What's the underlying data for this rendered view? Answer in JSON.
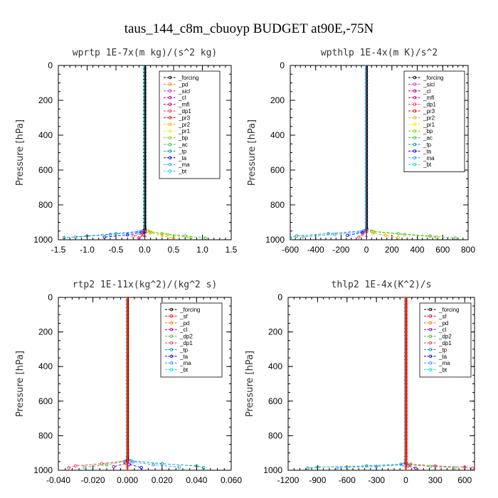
{
  "figure_title": "taus_144_c8m_cbuoyp  BUDGET at90E,-75N",
  "colors": {
    "_forcing": "#000000",
    "_sf": "#ff0000",
    "_pd": "#ff7f00",
    "_sicl": "#cc33cc",
    "_cl": "#990099",
    "_mfl": "#cc0066",
    "_dp1": "#ff3355",
    "_dp2": "#44bb44",
    "_pr3": "#ff0000",
    "_pr2": "#ffaa00",
    "_pr1": "#eeee00",
    "_bp": "#88cc00",
    "_ac": "#33cc33",
    "_tp": "#009999",
    "_ta": "#0000ff",
    "_ma": "#3399ff",
    "_bt": "#00dddd"
  },
  "chart_data": [
    {
      "type": "line",
      "title": "wprtp   1E-7x(m kg)/(s^2 kg)",
      "ylabel": "Pressure [hPa]",
      "xlim": [
        -1.5,
        1.5
      ],
      "ylim": [
        1000,
        0
      ],
      "xticks": [
        "-1.5",
        "-1.0",
        "-0.5",
        "0.0",
        "0.5",
        "1.0",
        "1.5"
      ],
      "yticks": [
        "0",
        "200",
        "400",
        "600",
        "800",
        "1000"
      ],
      "legend": [
        "_forcing",
        "_pd",
        "_sicl",
        "_cl",
        "_mfl",
        "_dp1",
        "_pr3",
        "_pr2",
        "_pr1",
        "_bp",
        "_ac",
        "_tp",
        "_ta",
        "_ma",
        "_bt"
      ],
      "legend_position": "top-right",
      "series": [
        {
          "name": "_ac",
          "x": [
            0.0,
            0.05,
            0.3,
            0.7,
            1.05
          ],
          "y": [
            930,
            950,
            965,
            978,
            990
          ]
        },
        {
          "name": "_bp",
          "x": [
            0.0,
            0.1,
            0.4,
            0.8
          ],
          "y": [
            935,
            955,
            970,
            988
          ]
        },
        {
          "name": "_pr2",
          "x": [
            0.0,
            0.1,
            0.3,
            0.5
          ],
          "y": [
            940,
            960,
            975,
            990
          ]
        },
        {
          "name": "_tp",
          "x": [
            0.0,
            -0.05,
            -0.5,
            -1.0,
            -1.4
          ],
          "y": [
            930,
            950,
            965,
            978,
            988
          ]
        },
        {
          "name": "_ma",
          "x": [
            0.0,
            -0.1,
            -0.6,
            -1.2
          ],
          "y": [
            935,
            955,
            970,
            985
          ]
        },
        {
          "name": "_ta",
          "x": [
            0.0,
            -0.05,
            -0.3,
            -0.7
          ],
          "y": [
            940,
            958,
            972,
            985
          ]
        },
        {
          "name": "_dp1",
          "x": [
            0.0,
            -0.05,
            -0.2
          ],
          "y": [
            950,
            965,
            980
          ]
        },
        {
          "name": "_mfl",
          "x": [
            0.0,
            -0.02,
            -0.1
          ],
          "y": [
            955,
            970,
            990
          ]
        }
      ]
    },
    {
      "type": "line",
      "title": "wpthlp   1E-4x(m K)/s^2",
      "ylabel": "Pressure [hPa]",
      "xlim": [
        -600,
        800
      ],
      "ylim": [
        1000,
        0
      ],
      "xticks": [
        "-600",
        "-400",
        "-200",
        "0",
        "200",
        "400",
        "600",
        "800"
      ],
      "yticks": [
        "0",
        "200",
        "400",
        "600",
        "800",
        "1000"
      ],
      "legend": [
        "_forcing",
        "_sicl",
        "_cl",
        "_mfl",
        "_dp1",
        "_pr3",
        "_pr2",
        "_pr1",
        "_bp",
        "_ac",
        "_tp",
        "_ta",
        "_ma",
        "_bt"
      ],
      "legend_position": "top-right",
      "series": [
        {
          "name": "_ac",
          "x": [
            0,
            40,
            250,
            500,
            700
          ],
          "y": [
            930,
            950,
            965,
            978,
            990
          ]
        },
        {
          "name": "_bp",
          "x": [
            0,
            60,
            300,
            550
          ],
          "y": [
            935,
            955,
            970,
            985
          ]
        },
        {
          "name": "_pr2",
          "x": [
            0,
            50,
            150,
            250
          ],
          "y": [
            945,
            962,
            975,
            988
          ]
        },
        {
          "name": "_tp",
          "x": [
            0,
            -20,
            -300,
            -550,
            -600
          ],
          "y": [
            930,
            948,
            965,
            978,
            988
          ]
        },
        {
          "name": "_ma",
          "x": [
            0,
            -40,
            -250,
            -500
          ],
          "y": [
            935,
            955,
            970,
            983
          ]
        },
        {
          "name": "_ta",
          "x": [
            0,
            -30,
            -150
          ],
          "y": [
            940,
            958,
            975
          ]
        },
        {
          "name": "_dp1",
          "x": [
            0,
            -30,
            -60
          ],
          "y": [
            950,
            968,
            985
          ]
        }
      ]
    },
    {
      "type": "line",
      "title": "rtp2   1E-11x(kg^2)/(kg^2 s)",
      "ylabel": "Pressure [hPa]",
      "xlim": [
        -0.04,
        0.06
      ],
      "ylim": [
        1000,
        0
      ],
      "xticks": [
        "-0.040",
        "-0.020",
        "0.000",
        "0.020",
        "0.040",
        "0.060"
      ],
      "yticks": [
        "0",
        "200",
        "400",
        "600",
        "800",
        "1000"
      ],
      "legend": [
        "_forcing",
        "_sf",
        "_pd",
        "_cl",
        "_dp2",
        "_dp1",
        "_tp",
        "_ta",
        "_ma",
        "_bt"
      ],
      "legend_position": "top-right",
      "series": [
        {
          "name": "_dp1",
          "x": [
            0.0,
            -0.001,
            -0.015,
            -0.03,
            -0.034
          ],
          "y": [
            920,
            945,
            962,
            975,
            985
          ]
        },
        {
          "name": "_dp2",
          "x": [
            0.0,
            -0.002,
            -0.012,
            -0.025
          ],
          "y": [
            925,
            950,
            968,
            982
          ]
        },
        {
          "name": "_cl",
          "x": [
            0.0,
            -0.001,
            -0.008
          ],
          "y": [
            940,
            960,
            980
          ]
        },
        {
          "name": "_tp",
          "x": [
            0.0,
            0.002,
            0.02,
            0.04,
            0.044
          ],
          "y": [
            920,
            945,
            962,
            975,
            985
          ]
        },
        {
          "name": "_ma",
          "x": [
            0.0,
            0.003,
            0.015,
            0.03
          ],
          "y": [
            930,
            952,
            968,
            982
          ]
        },
        {
          "name": "_ta",
          "x": [
            0.0,
            0.001,
            0.008
          ],
          "y": [
            945,
            965,
            985
          ]
        }
      ]
    },
    {
      "type": "line",
      "title": "thlp2   1E-4x(K^2)/s",
      "ylabel": "Pressure [hPa]",
      "xlim": [
        -1200,
        700
      ],
      "ylim": [
        1000,
        0
      ],
      "xticks": [
        "-1200",
        "-900",
        "-600",
        "-300",
        "0",
        "300",
        "600"
      ],
      "yticks": [
        "0",
        "200",
        "400",
        "600",
        "800",
        "1000"
      ],
      "legend": [
        "_forcing",
        "_sf",
        "_pd",
        "_cl",
        "_dp2",
        "_dp1",
        "_tp",
        "_ta",
        "_ma",
        "_bt"
      ],
      "legend_position": "top-right",
      "series": [
        {
          "name": "_tp",
          "x": [
            0,
            -50,
            -400,
            -900,
            -1000
          ],
          "y": [
            950,
            965,
            975,
            982,
            988
          ]
        },
        {
          "name": "_ma",
          "x": [
            0,
            -30,
            -300,
            -700
          ],
          "y": [
            955,
            968,
            978,
            986
          ]
        },
        {
          "name": "_dp1",
          "x": [
            0,
            50,
            300,
            600,
            680
          ],
          "y": [
            950,
            965,
            975,
            982,
            988
          ]
        },
        {
          "name": "_dp2",
          "x": [
            0,
            40,
            250,
            500
          ],
          "y": [
            955,
            968,
            978,
            986
          ]
        },
        {
          "name": "_cl",
          "x": [
            0,
            20,
            100
          ],
          "y": [
            960,
            975,
            988
          ]
        }
      ]
    }
  ]
}
